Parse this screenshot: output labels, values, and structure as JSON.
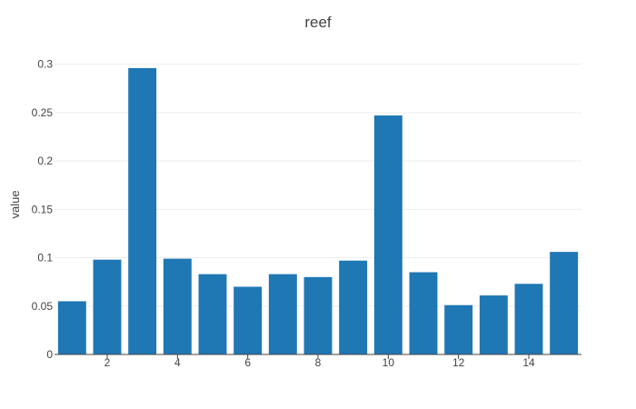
{
  "chart_data": {
    "type": "bar",
    "title": "reef",
    "xlabel": "",
    "ylabel": "value",
    "x": [
      1,
      2,
      3,
      4,
      5,
      6,
      7,
      8,
      9,
      10,
      11,
      12,
      13,
      14,
      15
    ],
    "values": [
      0.055,
      0.098,
      0.296,
      0.099,
      0.083,
      0.07,
      0.083,
      0.08,
      0.097,
      0.247,
      0.085,
      0.051,
      0.061,
      0.073,
      0.106
    ],
    "xlim": [
      0.5,
      15.5
    ],
    "ylim": [
      0,
      0.31
    ],
    "xticks": [
      2,
      4,
      6,
      8,
      10,
      12,
      14
    ],
    "xtick_labels": [
      "2",
      "4",
      "6",
      "8",
      "10",
      "12",
      "14"
    ],
    "yticks": [
      0,
      0.05,
      0.1,
      0.15,
      0.2,
      0.25,
      0.3
    ],
    "ytick_labels": [
      "0",
      "0.05",
      "0.1",
      "0.15",
      "0.2",
      "0.25",
      "0.3"
    ],
    "grid": true,
    "legend": "none",
    "bar_color": "#1f77b4",
    "grid_color": "#eeeeee",
    "axis_line_color": "#444444",
    "text_color": "#444444"
  }
}
